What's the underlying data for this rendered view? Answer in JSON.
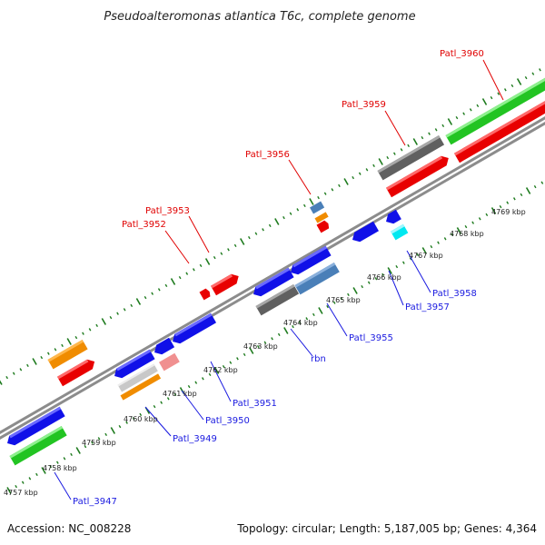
{
  "title": "Pseudoalteromonas atlantica T6c, complete genome",
  "footer": {
    "accession": "Accession: NC_008228",
    "summary": "Topology: circular; Length: 5,187,005 bp; Genes: 4,364"
  },
  "colors": {
    "backbone": "#8c8c8c",
    "tick": "#1e7b1e",
    "upper_label": "#e00000",
    "lower_label": "#1a1ae0"
  },
  "kbp_labels": [
    "4757 kbp",
    "4758 kbp",
    "4759 kbp",
    "4760 kbp",
    "4761 kbp",
    "4762 kbp",
    "4763 kbp",
    "4764 kbp",
    "4765 kbp",
    "4766 kbp",
    "4767 kbp",
    "4768 kbp",
    "4769 kbp"
  ],
  "upper_gene_labels": [
    "Patl_3952",
    "Patl_3953",
    "Patl_3956",
    "Patl_3959",
    "Patl_3960"
  ],
  "lower_gene_labels": [
    "Patl_3947",
    "Patl_3949",
    "Patl_3950",
    "Patl_3951",
    "rbn",
    "Patl_3955",
    "Patl_3957",
    "Patl_3958"
  ]
}
